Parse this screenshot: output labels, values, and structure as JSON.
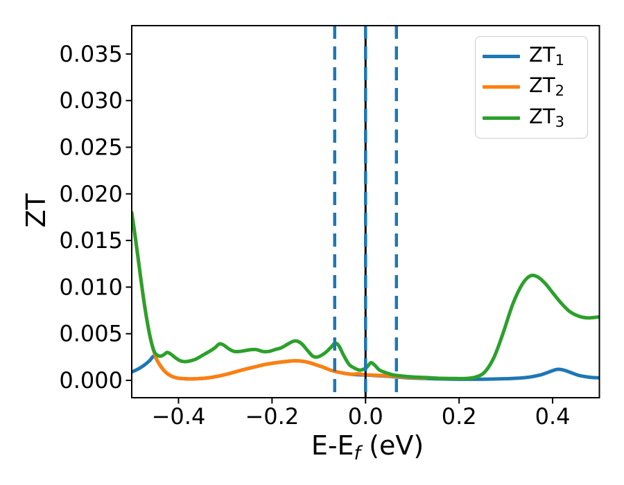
{
  "figure": {
    "background": "#ffffff",
    "ylabel": "ZT",
    "xlabel_main": "E-E",
    "xlabel_sub": "f",
    "xlabel_unit": " (eV)"
  },
  "chart_data": {
    "type": "line",
    "title": "",
    "xlabel": "E-E_f (eV)",
    "ylabel": "ZT",
    "xlim": [
      -0.5,
      0.5
    ],
    "ylim": [
      -0.00186,
      0.03804
    ],
    "grid": false,
    "legend_position": "upper right",
    "axis_color": "#000000",
    "tick_label_color": "#000000",
    "xticks": {
      "values": [
        -0.4,
        -0.2,
        0.0,
        0.2,
        0.4
      ],
      "labels": [
        "−0.4",
        "−0.2",
        "0.0",
        "0.2",
        "0.4"
      ]
    },
    "yticks": {
      "values": [
        0.0,
        0.005,
        0.01,
        0.015,
        0.02,
        0.025,
        0.03,
        0.035
      ],
      "labels": [
        "0.000",
        "0.005",
        "0.010",
        "0.015",
        "0.020",
        "0.025",
        "0.030",
        "0.035"
      ]
    },
    "vlines": [
      {
        "x": 0.0,
        "style": "solid",
        "color": "#000000"
      },
      {
        "x": -0.066,
        "style": "dashed",
        "color": "#1f77b4"
      },
      {
        "x": 0.0,
        "style": "dashed",
        "color": "#1f77b4"
      },
      {
        "x": 0.066,
        "style": "dashed",
        "color": "#1f77b4"
      }
    ],
    "series": [
      {
        "name": "ZT1",
        "label_main": "ZT",
        "label_sub": "1",
        "color": "#1f77b4",
        "points": [
          [
            -0.5,
            0.0009
          ],
          [
            -0.487,
            0.0012
          ],
          [
            -0.474,
            0.0016
          ],
          [
            -0.462,
            0.0021
          ],
          [
            -0.452,
            0.0026
          ],
          [
            -0.443,
            0.0019
          ],
          [
            -0.43,
            0.001
          ],
          [
            -0.417,
            0.0005
          ],
          [
            -0.403,
            0.00025
          ],
          [
            -0.39,
            0.00018
          ],
          [
            -0.375,
            0.00015
          ],
          [
            -0.358,
            0.00018
          ],
          [
            -0.34,
            0.00025
          ],
          [
            -0.315,
            0.00045
          ],
          [
            -0.29,
            0.00075
          ],
          [
            -0.265,
            0.0011
          ],
          [
            -0.24,
            0.0014
          ],
          [
            -0.215,
            0.0017
          ],
          [
            -0.19,
            0.0019
          ],
          [
            -0.165,
            0.00205
          ],
          [
            -0.15,
            0.0021
          ],
          [
            -0.135,
            0.00205
          ],
          [
            -0.12,
            0.0019
          ],
          [
            -0.105,
            0.00165
          ],
          [
            -0.09,
            0.0014
          ],
          [
            -0.075,
            0.0011
          ],
          [
            -0.06,
            0.0009
          ],
          [
            -0.045,
            0.00075
          ],
          [
            -0.03,
            0.00065
          ],
          [
            -0.015,
            0.0006
          ],
          [
            0.0,
            0.00058
          ],
          [
            0.02,
            0.00052
          ],
          [
            0.045,
            0.00045
          ],
          [
            0.07,
            0.00035
          ],
          [
            0.1,
            0.00025
          ],
          [
            0.13,
            0.0002
          ],
          [
            0.16,
            0.00015
          ],
          [
            0.2,
            0.00012
          ],
          [
            0.24,
            0.00012
          ],
          [
            0.28,
            0.00015
          ],
          [
            0.32,
            0.00022
          ],
          [
            0.35,
            0.00035
          ],
          [
            0.375,
            0.0006
          ],
          [
            0.395,
            0.00095
          ],
          [
            0.41,
            0.00118
          ],
          [
            0.424,
            0.0011
          ],
          [
            0.438,
            0.00085
          ],
          [
            0.455,
            0.00055
          ],
          [
            0.47,
            0.0004
          ],
          [
            0.485,
            0.0003
          ],
          [
            0.5,
            0.00028
          ]
        ]
      },
      {
        "name": "ZT2",
        "label_main": "ZT",
        "label_sub": "2",
        "color": "#ff7f0e",
        "points": [
          [
            -0.5,
            0.018
          ],
          [
            -0.492,
            0.0152
          ],
          [
            -0.484,
            0.0122
          ],
          [
            -0.476,
            0.0092
          ],
          [
            -0.468,
            0.0066
          ],
          [
            -0.46,
            0.0045
          ],
          [
            -0.452,
            0.003
          ],
          [
            -0.443,
            0.0019
          ],
          [
            -0.43,
            0.001
          ],
          [
            -0.417,
            0.0005
          ],
          [
            -0.403,
            0.00025
          ],
          [
            -0.39,
            0.00018
          ],
          [
            -0.375,
            0.00015
          ],
          [
            -0.358,
            0.00018
          ],
          [
            -0.34,
            0.00025
          ],
          [
            -0.315,
            0.00045
          ],
          [
            -0.29,
            0.00075
          ],
          [
            -0.265,
            0.0011
          ],
          [
            -0.24,
            0.0014
          ],
          [
            -0.215,
            0.0017
          ],
          [
            -0.19,
            0.0019
          ],
          [
            -0.165,
            0.00205
          ],
          [
            -0.15,
            0.0021
          ],
          [
            -0.135,
            0.00205
          ],
          [
            -0.12,
            0.0019
          ],
          [
            -0.105,
            0.00165
          ],
          [
            -0.09,
            0.0014
          ],
          [
            -0.075,
            0.0011
          ],
          [
            -0.06,
            0.0009
          ],
          [
            -0.045,
            0.00075
          ],
          [
            -0.03,
            0.00065
          ],
          [
            -0.015,
            0.0007
          ],
          [
            0.0,
            0.0006
          ],
          [
            0.02,
            0.00055
          ],
          [
            0.045,
            0.0005
          ],
          [
            0.07,
            0.0004
          ],
          [
            0.1,
            0.0003
          ],
          [
            0.13,
            0.00025
          ]
        ]
      },
      {
        "name": "ZT3",
        "label_main": "ZT",
        "label_sub": "3",
        "color": "#2ca02c",
        "points": [
          [
            -0.5,
            0.018
          ],
          [
            -0.492,
            0.0152
          ],
          [
            -0.484,
            0.0122
          ],
          [
            -0.476,
            0.0092
          ],
          [
            -0.468,
            0.0066
          ],
          [
            -0.46,
            0.0045
          ],
          [
            -0.452,
            0.0031
          ],
          [
            -0.445,
            0.0027
          ],
          [
            -0.438,
            0.0026
          ],
          [
            -0.43,
            0.0028
          ],
          [
            -0.424,
            0.003
          ],
          [
            -0.416,
            0.0028
          ],
          [
            -0.406,
            0.0024
          ],
          [
            -0.396,
            0.0021
          ],
          [
            -0.386,
            0.002
          ],
          [
            -0.374,
            0.0021
          ],
          [
            -0.362,
            0.0023
          ],
          [
            -0.348,
            0.0027
          ],
          [
            -0.334,
            0.0031
          ],
          [
            -0.322,
            0.0035
          ],
          [
            -0.313,
            0.0039
          ],
          [
            -0.304,
            0.0038
          ],
          [
            -0.293,
            0.0034
          ],
          [
            -0.281,
            0.0031
          ],
          [
            -0.269,
            0.0031
          ],
          [
            -0.257,
            0.0032
          ],
          [
            -0.245,
            0.0033
          ],
          [
            -0.233,
            0.0033
          ],
          [
            -0.22,
            0.0031
          ],
          [
            -0.207,
            0.0031
          ],
          [
            -0.194,
            0.0033
          ],
          [
            -0.18,
            0.0035
          ],
          [
            -0.166,
            0.0039
          ],
          [
            -0.154,
            0.0042
          ],
          [
            -0.146,
            0.0042
          ],
          [
            -0.136,
            0.0039
          ],
          [
            -0.124,
            0.0032
          ],
          [
            -0.113,
            0.0026
          ],
          [
            -0.104,
            0.0025
          ],
          [
            -0.094,
            0.0027
          ],
          [
            -0.083,
            0.0031
          ],
          [
            -0.073,
            0.0036
          ],
          [
            -0.065,
            0.004
          ],
          [
            -0.057,
            0.0037
          ],
          [
            -0.047,
            0.0027
          ],
          [
            -0.035,
            0.0017
          ],
          [
            -0.023,
            0.0013
          ],
          [
            -0.012,
            0.0011
          ],
          [
            0.0,
            0.0013
          ],
          [
            0.006,
            0.0016
          ],
          [
            0.012,
            0.0019
          ],
          [
            0.02,
            0.0016
          ],
          [
            0.03,
            0.0011
          ],
          [
            0.045,
            0.0008
          ],
          [
            0.058,
            0.0006
          ],
          [
            0.08,
            0.00045
          ],
          [
            0.105,
            0.00035
          ],
          [
            0.13,
            0.0003
          ],
          [
            0.16,
            0.00022
          ],
          [
            0.19,
            0.0002
          ],
          [
            0.215,
            0.0002
          ],
          [
            0.235,
            0.00035
          ],
          [
            0.255,
            0.0009
          ],
          [
            0.275,
            0.0025
          ],
          [
            0.295,
            0.0052
          ],
          [
            0.315,
            0.0082
          ],
          [
            0.335,
            0.0103
          ],
          [
            0.352,
            0.0112
          ],
          [
            0.368,
            0.0111
          ],
          [
            0.384,
            0.0104
          ],
          [
            0.4,
            0.0094
          ],
          [
            0.418,
            0.0083
          ],
          [
            0.436,
            0.0074
          ],
          [
            0.455,
            0.0069
          ],
          [
            0.475,
            0.0067
          ],
          [
            0.5,
            0.0068
          ]
        ]
      }
    ]
  }
}
